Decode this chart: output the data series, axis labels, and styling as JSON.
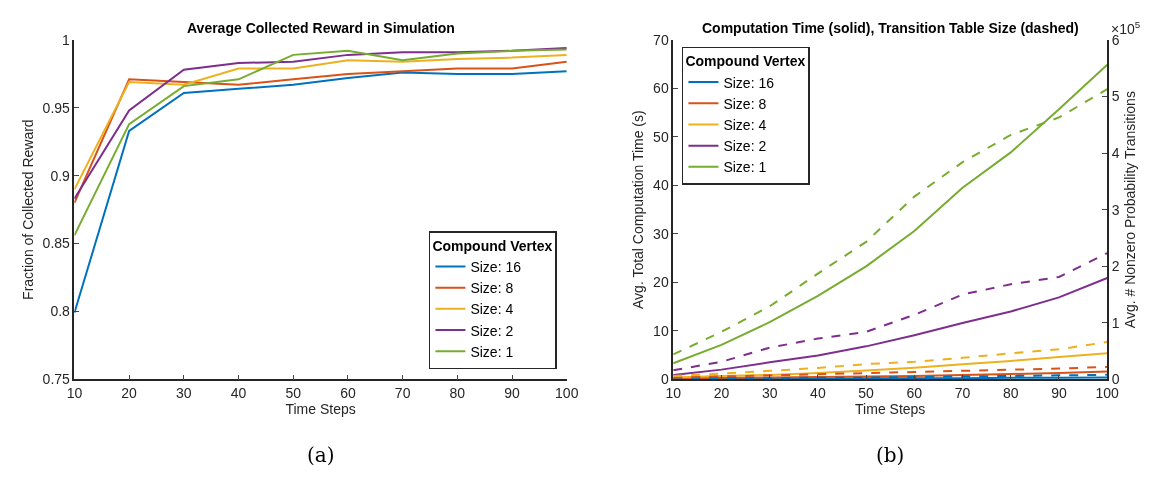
{
  "chart_data": [
    {
      "type": "line",
      "title": "Average Collected Reward in Simulation",
      "xlabel": "Time Steps",
      "ylabel": "Fraction of Collected Reward",
      "legend_title": "Compound Vertex",
      "legend": "bottom right",
      "x": [
        10,
        20,
        30,
        40,
        50,
        60,
        70,
        80,
        90,
        100
      ],
      "xlim": [
        10,
        100
      ],
      "xticks": [
        10,
        20,
        30,
        40,
        50,
        60,
        70,
        80,
        90,
        100
      ],
      "ylim": [
        0.75,
        1
      ],
      "yticks": [
        0.75,
        0.8,
        0.85,
        0.9,
        0.95,
        1
      ],
      "series": [
        {
          "name": "Size: 16",
          "color": "#0072bd",
          "values": [
            0.799,
            0.933,
            0.961,
            0.964,
            0.967,
            0.972,
            0.976,
            0.975,
            0.975,
            0.977
          ]
        },
        {
          "name": "Size: 8",
          "color": "#d95319",
          "values": [
            0.88,
            0.971,
            0.969,
            0.967,
            0.971,
            0.975,
            0.977,
            0.979,
            0.979,
            0.984
          ]
        },
        {
          "name": "Size: 4",
          "color": "#edb120",
          "values": [
            0.89,
            0.969,
            0.967,
            0.979,
            0.979,
            0.985,
            0.984,
            0.986,
            0.987,
            0.989
          ]
        },
        {
          "name": "Size: 2",
          "color": "#7e2f8e",
          "values": [
            0.883,
            0.948,
            0.978,
            0.983,
            0.984,
            0.989,
            0.991,
            0.991,
            0.992,
            0.994
          ]
        },
        {
          "name": "Size: 1",
          "color": "#77ac30",
          "values": [
            0.856,
            0.938,
            0.966,
            0.971,
            0.989,
            0.992,
            0.985,
            0.99,
            0.992,
            0.993
          ]
        }
      ],
      "annotations": [
        "(a)"
      ]
    },
    {
      "type": "line",
      "title": "Computation Time (solid), Transition Table Size (dashed)",
      "xlabel": "Time Steps",
      "ylabel": "Avg. Total Computation Time (s)",
      "y2label": "Avg. # Nonzero Probability Transitions",
      "legend_title": "Compound Vertex",
      "legend": "top left",
      "x": [
        10,
        20,
        30,
        40,
        50,
        60,
        70,
        80,
        90,
        100
      ],
      "xlim": [
        10,
        100
      ],
      "xticks": [
        10,
        20,
        30,
        40,
        50,
        60,
        70,
        80,
        90,
        100
      ],
      "ylim": [
        0,
        70
      ],
      "yticks": [
        0,
        10,
        20,
        30,
        40,
        50,
        60,
        70
      ],
      "y2lim": [
        0,
        6
      ],
      "y2ticks": [
        0,
        1,
        2,
        3,
        4,
        5,
        6
      ],
      "series": [
        {
          "name": "Size: 16",
          "color": "#0072bd",
          "line_style": "solid",
          "values": [
            0.1,
            0.1,
            0.1,
            0.1,
            0.2,
            0.2,
            0.2,
            0.3,
            0.3,
            0.4
          ]
        },
        {
          "name": "Size: 8",
          "color": "#d95319",
          "line_style": "solid",
          "values": [
            0.2,
            0.3,
            0.4,
            0.5,
            0.6,
            0.7,
            0.9,
            1.1,
            1.3,
            1.6
          ]
        },
        {
          "name": "Size: 4",
          "color": "#edb120",
          "line_style": "solid",
          "values": [
            0.4,
            0.7,
            0.9,
            1.3,
            1.8,
            2.4,
            3.1,
            3.8,
            4.6,
            5.4
          ]
        },
        {
          "name": "Size: 2",
          "color": "#7e2f8e",
          "line_style": "solid",
          "values": [
            0.9,
            2.0,
            3.5,
            4.9,
            6.8,
            9.1,
            11.6,
            14.0,
            16.9,
            20.9
          ]
        },
        {
          "name": "Size: 1",
          "color": "#77ac30",
          "line_style": "solid",
          "values": [
            3.3,
            7.1,
            11.8,
            17.2,
            23.3,
            30.6,
            39.5,
            46.8,
            55.7,
            64.9
          ]
        },
        {
          "color": "#0072bd",
          "axis": "y2",
          "line_style": "dashed",
          "values": [
            0.01,
            0.02,
            0.02,
            0.03,
            0.03,
            0.04,
            0.05,
            0.06,
            0.07,
            0.08
          ]
        },
        {
          "color": "#d95319",
          "axis": "y2",
          "line_style": "dashed",
          "values": [
            0.03,
            0.05,
            0.07,
            0.09,
            0.11,
            0.13,
            0.15,
            0.17,
            0.19,
            0.22
          ]
        },
        {
          "color": "#edb120",
          "axis": "y2",
          "line_style": "dashed",
          "values": [
            0.06,
            0.1,
            0.15,
            0.2,
            0.27,
            0.31,
            0.38,
            0.46,
            0.53,
            0.66
          ]
        },
        {
          "color": "#7e2f8e",
          "axis": "y2",
          "line_style": "dashed",
          "values": [
            0.16,
            0.31,
            0.56,
            0.72,
            0.84,
            1.14,
            1.5,
            1.68,
            1.81,
            2.23
          ]
        },
        {
          "color": "#77ac30",
          "axis": "y2",
          "line_style": "dashed",
          "values": [
            0.44,
            0.84,
            1.29,
            1.87,
            2.43,
            3.23,
            3.84,
            4.32,
            4.63,
            5.13
          ]
        }
      ],
      "annotations": [
        "×10$^{5}$",
        "(b)"
      ]
    }
  ]
}
